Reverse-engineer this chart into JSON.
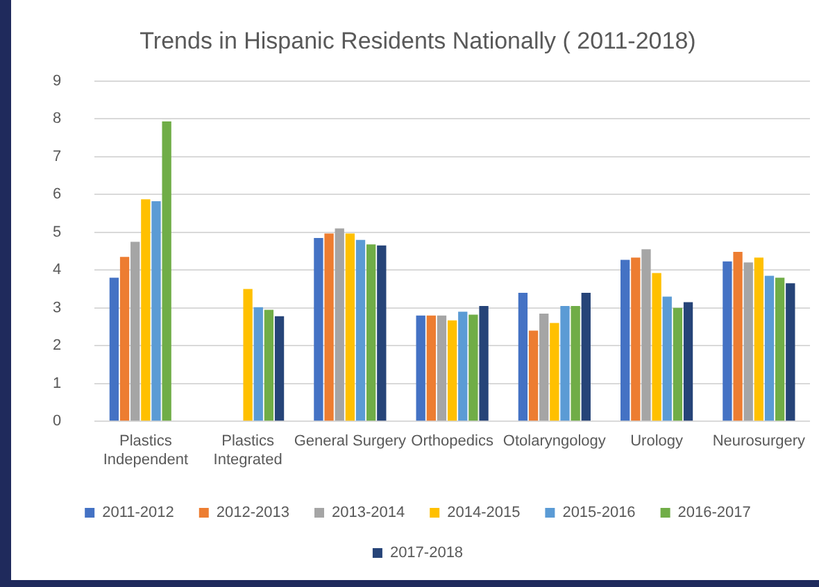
{
  "chart_data": {
    "type": "bar",
    "title": "Trends in Hispanic Residents Nationally ( 2011-2018)",
    "categories": [
      "Plastics Independent",
      "Plastics Integrated",
      "General Surgery",
      "Orthopedics",
      "Otolaryngology",
      "Urology",
      "Neurosurgery"
    ],
    "series": [
      {
        "name": "2011-2012",
        "color": "#4472c4",
        "values": [
          3.8,
          null,
          4.85,
          2.8,
          3.4,
          4.27,
          4.23
        ]
      },
      {
        "name": "2012-2013",
        "color": "#ed7d31",
        "values": [
          4.35,
          null,
          4.97,
          2.8,
          2.4,
          4.33,
          4.48
        ]
      },
      {
        "name": "2013-2014",
        "color": "#a5a5a5",
        "values": [
          4.75,
          null,
          5.1,
          2.8,
          2.85,
          4.55,
          4.2
        ]
      },
      {
        "name": "2014-2015",
        "color": "#ffc000",
        "values": [
          5.87,
          3.5,
          4.97,
          2.67,
          2.6,
          3.92,
          4.33
        ]
      },
      {
        "name": "2015-2016",
        "color": "#5b9bd5",
        "values": [
          5.82,
          3.02,
          4.8,
          2.9,
          3.05,
          3.3,
          3.85
        ]
      },
      {
        "name": "2016-2017",
        "color": "#70ad47",
        "values": [
          7.93,
          2.95,
          4.68,
          2.82,
          3.05,
          3.0,
          3.8
        ]
      },
      {
        "name": "2017-2018",
        "color": "#264478",
        "values": [
          null,
          2.78,
          4.65,
          3.05,
          3.4,
          3.15,
          3.65
        ]
      }
    ],
    "ylim": [
      0,
      9
    ],
    "yticks": [
      0,
      1,
      2,
      3,
      4,
      5,
      6,
      7,
      8,
      9
    ],
    "grid": "y",
    "legend": "bottom"
  }
}
